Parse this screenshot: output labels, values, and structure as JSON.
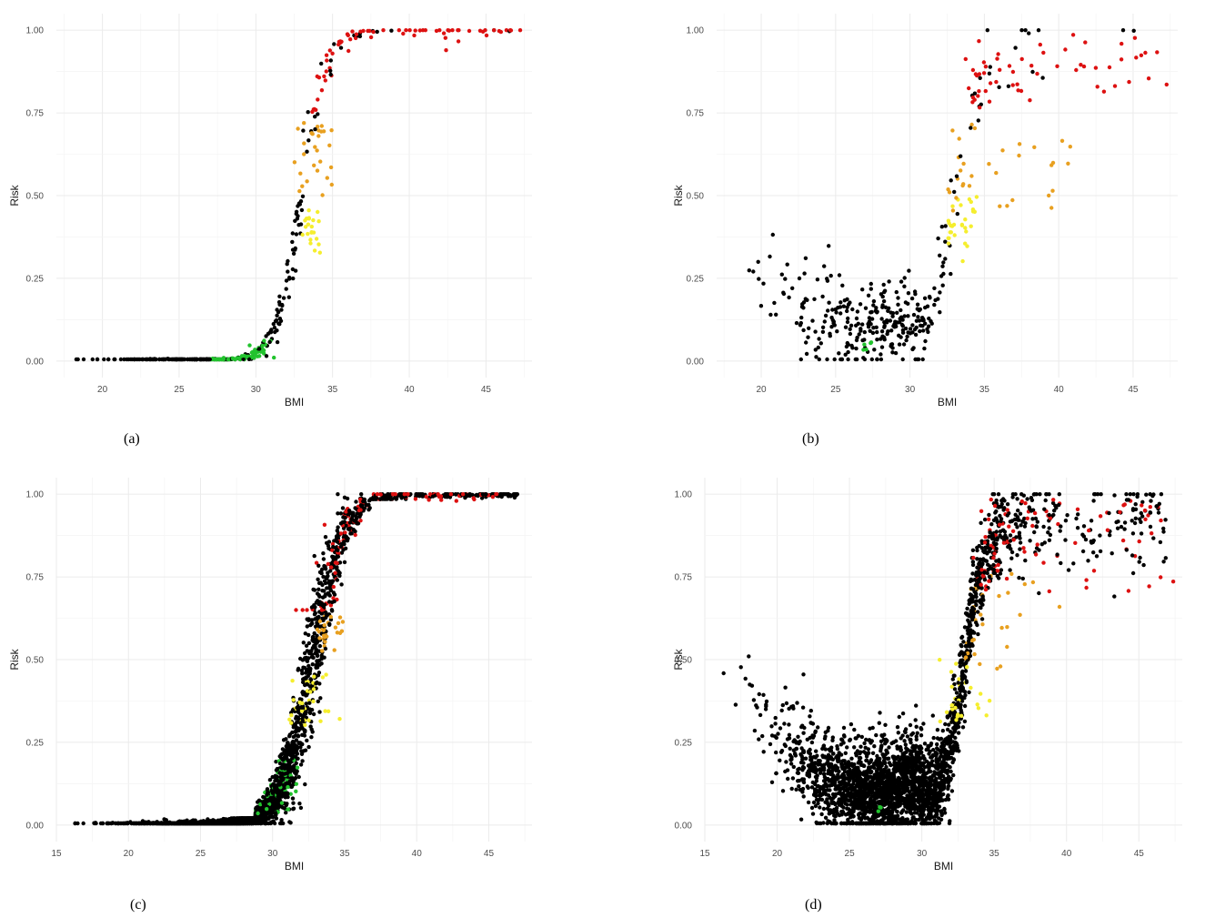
{
  "captions": [
    "(a)",
    "(b)",
    "(c)",
    "(d)"
  ],
  "colors": {
    "black": "#000000",
    "green": "#22c32e",
    "yellow": "#f5ee2e",
    "orange": "#e8a020",
    "red": "#dd1111"
  },
  "chart_data": [
    {
      "type": "scatter",
      "title": "",
      "xlabel": "BMI",
      "ylabel": "Risk",
      "xlim": [
        17,
        48
      ],
      "ylim": [
        -0.05,
        1.05
      ],
      "xticks": [
        20,
        25,
        30,
        35,
        40,
        45
      ],
      "yticks": [
        0.0,
        0.25,
        0.5,
        0.75,
        1.0
      ],
      "ytick_labels": [
        "0.00",
        "0.25",
        "0.50",
        "0.75",
        "1.00"
      ],
      "grid": true,
      "legend": "none",
      "n_points": 420,
      "curve": {
        "shape": "logistic",
        "midpoint": 33.0,
        "scale": 0.8,
        "spread": 0.06
      },
      "category_bands": [
        {
          "color": "green",
          "bmi": [
            27,
            31.5
          ],
          "risk": [
            0,
            0.07
          ]
        },
        {
          "color": "yellow",
          "bmi": [
            33,
            34.2
          ],
          "risk": [
            0.31,
            0.46
          ]
        },
        {
          "color": "orange",
          "bmi": [
            32.5,
            35.2
          ],
          "risk": [
            0.5,
            0.72
          ]
        },
        {
          "color": "red",
          "bmi": [
            33.5,
            47.5
          ],
          "risk": [
            0.75,
            1.0
          ]
        }
      ]
    },
    {
      "type": "scatter",
      "title": "",
      "xlabel": "BMI",
      "ylabel": "Risk",
      "xlim": [
        17,
        48
      ],
      "ylim": [
        -0.05,
        1.05
      ],
      "xticks": [
        20,
        25,
        30,
        35,
        40,
        45
      ],
      "yticks": [
        0.0,
        0.25,
        0.5,
        0.75,
        1.0
      ],
      "ytick_labels": [
        "0.00",
        "0.25",
        "0.50",
        "0.75",
        "1.00"
      ],
      "grid": true,
      "legend": "none",
      "n_points": 380,
      "curve": {
        "shape": "U-then-sigmoid",
        "low_level": 0.12,
        "rise_start": 30,
        "rise_end": 36,
        "high_level": 0.92
      },
      "category_bands": [
        {
          "color": "green",
          "bmi": [
            26.8,
            27.4
          ],
          "risk": [
            0.03,
            0.06
          ]
        },
        {
          "color": "yellow",
          "bmi": [
            32.5,
            34.5
          ],
          "risk": [
            0.3,
            0.5
          ]
        },
        {
          "color": "orange",
          "bmi": [
            32.5,
            41
          ],
          "risk": [
            0.45,
            0.76
          ]
        },
        {
          "color": "red",
          "bmi": [
            33.5,
            47.5
          ],
          "risk": [
            0.76,
            0.99
          ]
        }
      ]
    },
    {
      "type": "scatter",
      "title": "",
      "xlabel": "BMI",
      "ylabel": "Risk",
      "xlim": [
        15,
        48
      ],
      "ylim": [
        -0.05,
        1.05
      ],
      "xticks": [
        15,
        20,
        25,
        30,
        35,
        40,
        45
      ],
      "yticks": [
        0.0,
        0.25,
        0.5,
        0.75,
        1.0
      ],
      "ytick_labels": [
        "0.00",
        "0.25",
        "0.50",
        "0.75",
        "1.00"
      ],
      "grid": true,
      "legend": "none",
      "n_points": 3000,
      "curve": {
        "shape": "logistic",
        "midpoint": 32.8,
        "scale": 1.1,
        "spread": 0.1
      },
      "category_bands": [
        {
          "color": "green",
          "bmi": [
            28.5,
            32
          ],
          "risk": [
            0.02,
            0.2
          ]
        },
        {
          "color": "yellow",
          "bmi": [
            31,
            34.8
          ],
          "risk": [
            0.3,
            0.46
          ]
        },
        {
          "color": "orange",
          "bmi": [
            33,
            35
          ],
          "risk": [
            0.5,
            0.7
          ]
        },
        {
          "color": "red",
          "bmi": [
            31,
            46
          ],
          "risk": [
            0.65,
            1.0
          ]
        }
      ]
    },
    {
      "type": "scatter",
      "title": "",
      "xlabel": "BMI",
      "ylabel": "Risk",
      "xlim": [
        15,
        48
      ],
      "ylim": [
        -0.05,
        1.05
      ],
      "xticks": [
        15,
        20,
        25,
        30,
        35,
        40,
        45
      ],
      "yticks": [
        0.0,
        0.25,
        0.5,
        0.75,
        1.0
      ],
      "ytick_labels": [
        "0.00",
        "0.25",
        "0.50",
        "0.75",
        "1.00"
      ],
      "grid": true,
      "legend": "none",
      "n_points": 3000,
      "curve": {
        "shape": "U-then-sigmoid",
        "low_level": 0.12,
        "rise_start": 30,
        "rise_end": 36,
        "high_level": 0.92
      },
      "category_bands": [
        {
          "color": "green",
          "bmi": [
            26.8,
            27.4
          ],
          "risk": [
            0.03,
            0.06
          ]
        },
        {
          "color": "yellow",
          "bmi": [
            31,
            34.8
          ],
          "risk": [
            0.3,
            0.5
          ]
        },
        {
          "color": "orange",
          "bmi": [
            33,
            41
          ],
          "risk": [
            0.45,
            0.76
          ]
        },
        {
          "color": "red",
          "bmi": [
            33.5,
            47.5
          ],
          "risk": [
            0.7,
            0.99
          ]
        }
      ]
    }
  ]
}
